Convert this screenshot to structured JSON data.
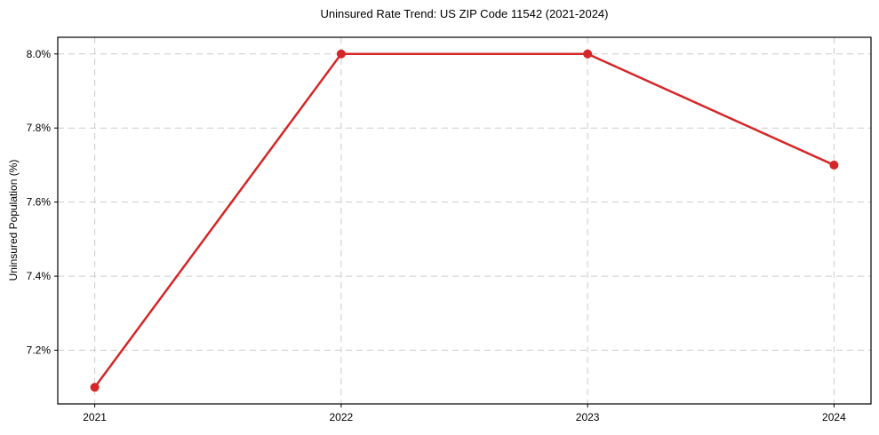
{
  "chart_data": {
    "type": "line",
    "title": "Uninsured Rate Trend: US ZIP Code 11542 (2021-2024)",
    "xlabel": "",
    "ylabel": "Uninsured Population (%)",
    "x": [
      2021,
      2022,
      2023,
      2024
    ],
    "y": [
      7.1,
      8.0,
      8.0,
      7.7
    ],
    "xtick_labels": [
      "2021",
      "2022",
      "2023",
      "2024"
    ],
    "xticks": [
      2021,
      2022,
      2023,
      2024
    ],
    "ytick_labels": [
      "7.2%",
      "7.4%",
      "7.6%",
      "7.8%",
      "8.0%"
    ],
    "yticks": [
      7.2,
      7.4,
      7.6,
      7.8,
      8.0
    ],
    "xlim": [
      2020.85,
      2024.15
    ],
    "ylim": [
      7.055,
      8.045
    ],
    "grid": true,
    "grid_style": "dashed",
    "legend": false,
    "line_color": "#d62728",
    "marker": "o",
    "grid_color": "#cccccc",
    "spine_color": "#000000",
    "background_color": "#ffffff"
  }
}
